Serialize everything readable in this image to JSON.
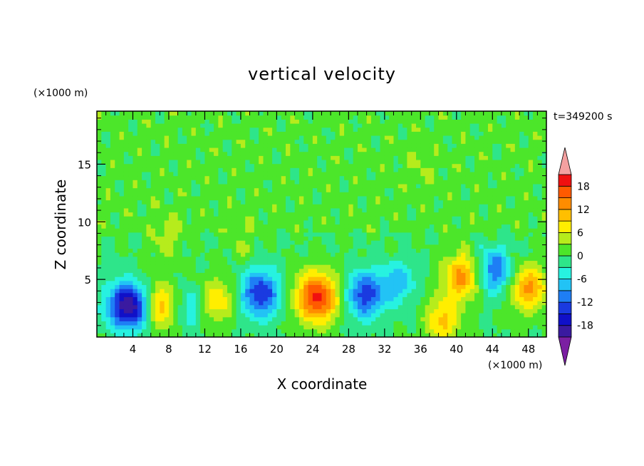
{
  "chart_data": {
    "type": "heatmap",
    "title": "vertical velocity",
    "xlabel": "X coordinate",
    "ylabel": "Z coordinate",
    "x_unit": "(×1000 m)",
    "y_unit": "(×1000 m)",
    "time_label": "t=349200 s",
    "xlim": [
      0,
      50
    ],
    "ylim": [
      0,
      19.6
    ],
    "x_ticks": [
      4,
      8,
      12,
      16,
      20,
      24,
      28,
      32,
      36,
      40,
      44,
      48
    ],
    "y_ticks": [
      5,
      10,
      15
    ],
    "colorbar": {
      "levels": [
        -21,
        -18,
        -15,
        -12,
        -9,
        -6,
        -3,
        0,
        3,
        6,
        9,
        12,
        15,
        18,
        21
      ],
      "labels": [
        18,
        12,
        6,
        0,
        -6,
        -12,
        -18
      ],
      "colors": [
        "#7b1fa2",
        "#3a1aa0",
        "#1010c8",
        "#1a3ae0",
        "#1e7ef5",
        "#22c3f5",
        "#27f2e0",
        "#2ee58a",
        "#4ce62a",
        "#b6ec1c",
        "#ffee00",
        "#ffbf00",
        "#ff8c00",
        "#ff5a00",
        "#f01010",
        "#f4a0a0"
      ]
    },
    "features": [
      {
        "x": 3.0,
        "z": 2.8,
        "w": -14
      },
      {
        "x": 4.4,
        "z": 2.5,
        "w": -10
      },
      {
        "x": 7.0,
        "z": 2.7,
        "w": 11
      },
      {
        "x": 7.8,
        "z": 8.5,
        "w": 5
      },
      {
        "x": 10.5,
        "z": 2.6,
        "w": -6
      },
      {
        "x": 13.3,
        "z": 3.2,
        "w": 9
      },
      {
        "x": 18.2,
        "z": 3.8,
        "w": -15
      },
      {
        "x": 24.5,
        "z": 3.5,
        "w": 19
      },
      {
        "x": 29.8,
        "z": 3.7,
        "w": -14
      },
      {
        "x": 33.5,
        "z": 4.8,
        "w": -8
      },
      {
        "x": 38.5,
        "z": 1.5,
        "w": 10
      },
      {
        "x": 40.6,
        "z": 5.3,
        "w": 13
      },
      {
        "x": 44.3,
        "z": 5.8,
        "w": -12
      },
      {
        "x": 48.0,
        "z": 4.3,
        "w": 13
      },
      {
        "x": 16.2,
        "z": 8.2,
        "w": 3
      },
      {
        "x": 36.0,
        "z": 15.0,
        "w": 2
      }
    ]
  }
}
